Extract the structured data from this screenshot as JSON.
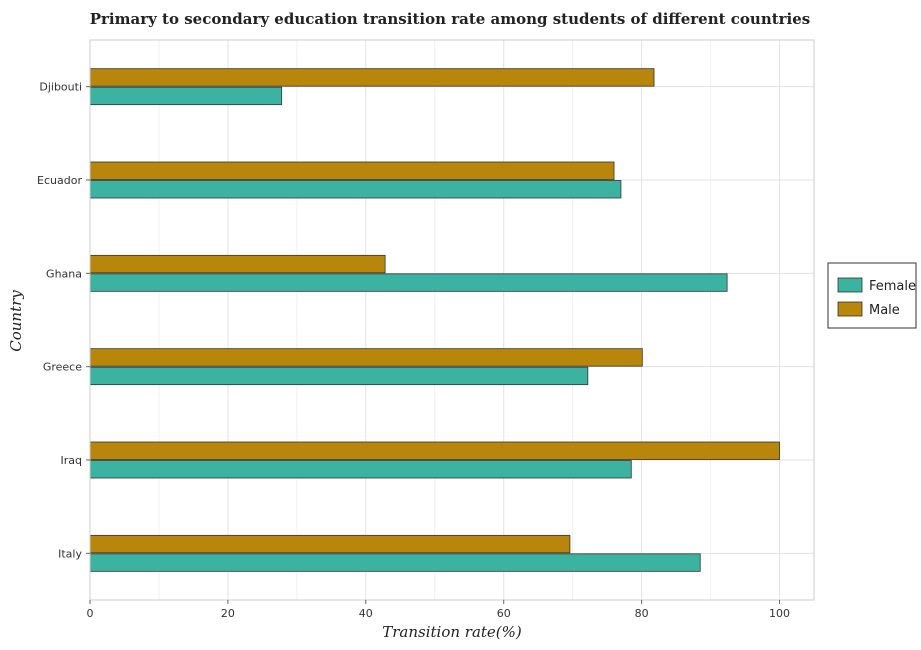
{
  "chart_data": {
    "type": "bar",
    "orientation": "horizontal",
    "title": "Primary to secondary education transition rate among students of different countries",
    "xlabel": "Transition rate(%)",
    "ylabel": "Country",
    "xlim": [
      0,
      105
    ],
    "xticks": [
      0,
      20,
      40,
      60,
      80,
      100
    ],
    "grid": true,
    "legend_position": "right",
    "categories": [
      "Djibouti",
      "Ecuador",
      "Ghana",
      "Greece",
      "Iraq",
      "Italy"
    ],
    "series": [
      {
        "name": "Female",
        "color": "#3cb3a0",
        "values": [
          27.8,
          77.0,
          92.4,
          72.2,
          78.5,
          88.5
        ]
      },
      {
        "name": "Male",
        "color": "#b8860b",
        "values": [
          81.8,
          76.0,
          42.8,
          80.1,
          100.0,
          69.6
        ]
      }
    ]
  }
}
